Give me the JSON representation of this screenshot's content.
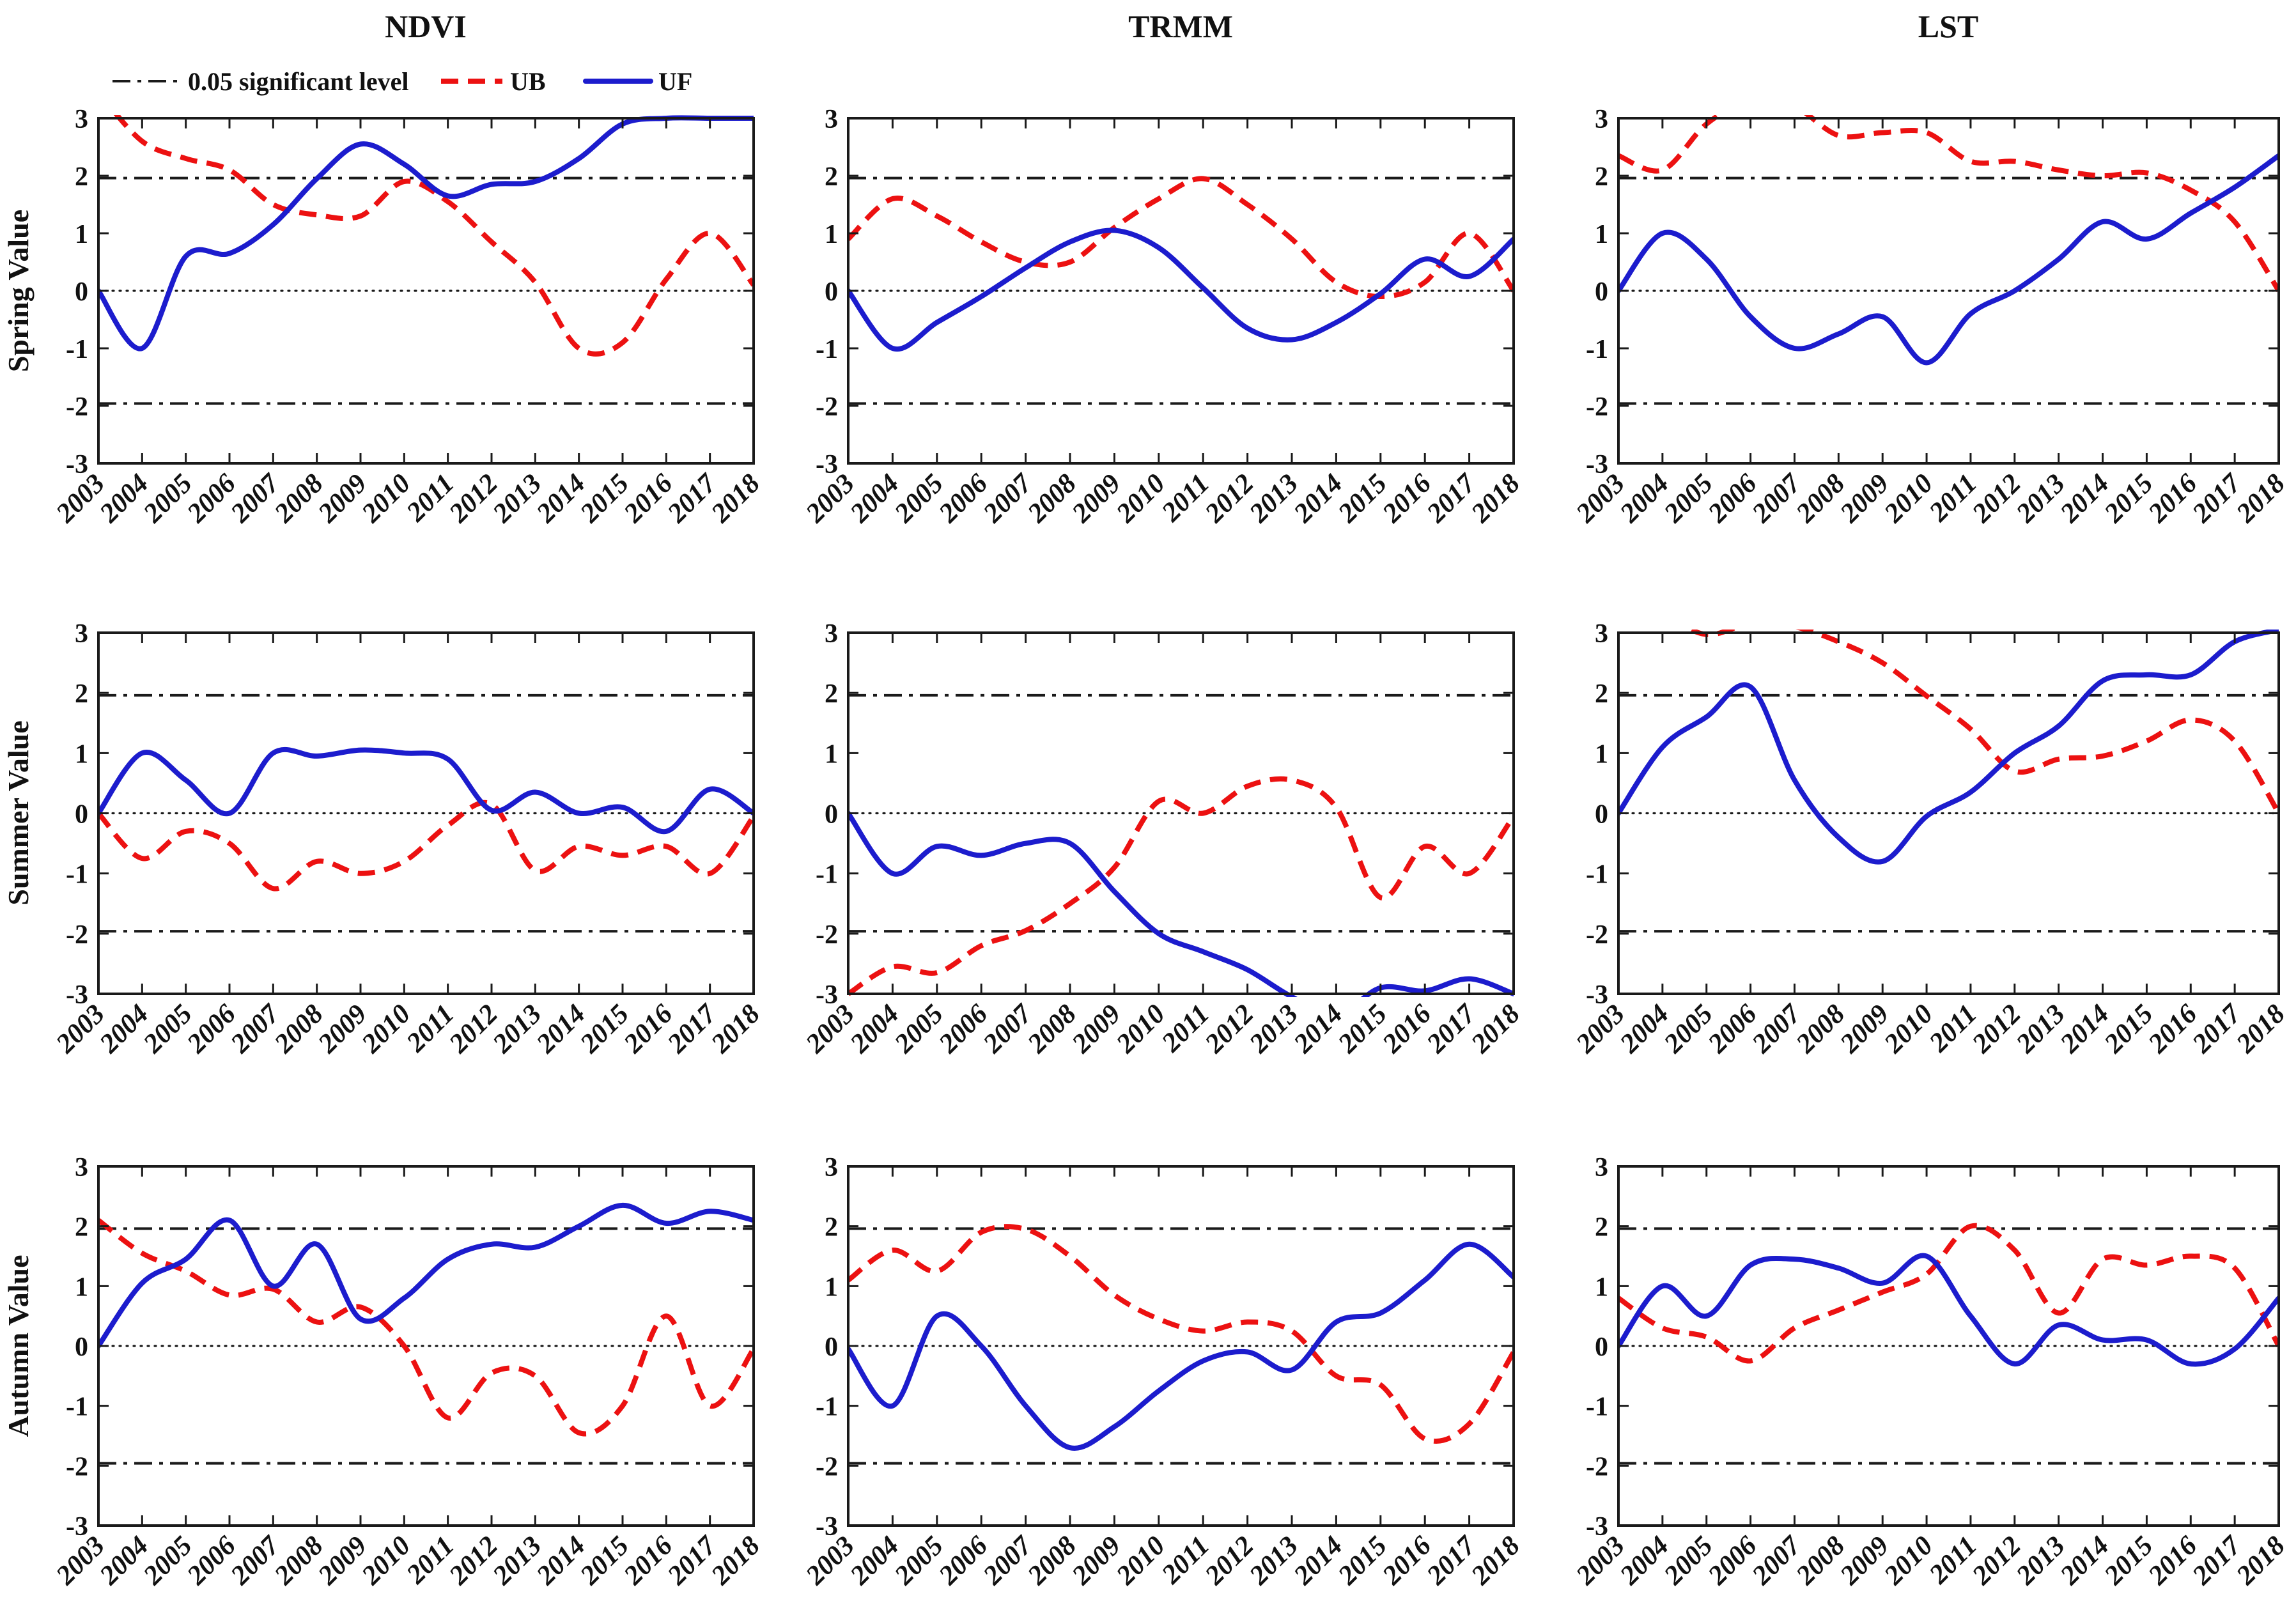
{
  "figure": {
    "column_titles": [
      "NDVI",
      "TRMM",
      "LST"
    ],
    "row_labels": [
      "Spring Value",
      "Summer Value",
      "Autumn Value"
    ],
    "legend": {
      "significance_label": "0.05 significant level",
      "ub_label": "UB",
      "uf_label": "UF"
    },
    "colors": {
      "uf_blue": "#1c1ccd",
      "ub_red": "#ec1111",
      "significance_line": "#1a1a1a",
      "zero_line": "#1a1a1a",
      "axis": "#000000"
    }
  },
  "chart_data": [
    {
      "id": "ndvi-spring",
      "type": "line",
      "column": "NDVI",
      "row": "Spring Value",
      "x_years": [
        2003,
        2004,
        2005,
        2006,
        2007,
        2008,
        2009,
        2010,
        2011,
        2012,
        2013,
        2014,
        2015,
        2016,
        2017,
        2018
      ],
      "ylim": [
        -3,
        3
      ],
      "yticks": [
        3,
        2,
        1,
        0,
        -1,
        -2,
        -3
      ],
      "significance_level": 1.96,
      "zero_line": 0,
      "grid": false,
      "legend_position": "top-left",
      "series": [
        {
          "name": "UB",
          "style": "dashed",
          "color": "#ec1111",
          "values": [
            3.45,
            2.6,
            2.3,
            2.1,
            1.5,
            1.32,
            1.3,
            1.9,
            1.55,
            0.85,
            0.15,
            -1.0,
            -0.9,
            0.2,
            1.0,
            0.1
          ]
        },
        {
          "name": "UF",
          "style": "solid",
          "color": "#1c1ccd",
          "values": [
            0,
            -1.0,
            0.6,
            0.65,
            1.15,
            1.95,
            2.55,
            2.2,
            1.65,
            1.85,
            1.9,
            2.3,
            2.9,
            3.0,
            3.0,
            3.0
          ]
        }
      ]
    },
    {
      "id": "trmm-spring",
      "type": "line",
      "column": "TRMM",
      "row": "Spring Value",
      "x_years": [
        2003,
        2004,
        2005,
        2006,
        2007,
        2008,
        2009,
        2010,
        2011,
        2012,
        2013,
        2014,
        2015,
        2016,
        2017,
        2018
      ],
      "ylim": [
        -3,
        3
      ],
      "yticks": [
        3,
        2,
        1,
        0,
        -1,
        -2,
        -3
      ],
      "significance_level": 1.96,
      "zero_line": 0,
      "grid": false,
      "series": [
        {
          "name": "UB",
          "style": "dashed",
          "color": "#ec1111",
          "values": [
            0.9,
            1.6,
            1.3,
            0.85,
            0.5,
            0.5,
            1.1,
            1.6,
            1.95,
            1.5,
            0.9,
            0.15,
            -0.1,
            0.15,
            1.0,
            0.0
          ]
        },
        {
          "name": "UF",
          "style": "solid",
          "color": "#1c1ccd",
          "values": [
            0,
            -1.0,
            -0.55,
            -0.1,
            0.4,
            0.85,
            1.05,
            0.75,
            0.05,
            -0.65,
            -0.85,
            -0.55,
            -0.05,
            0.55,
            0.25,
            0.9
          ]
        }
      ]
    },
    {
      "id": "lst-spring",
      "type": "line",
      "column": "LST",
      "row": "Spring Value",
      "x_years": [
        2003,
        2004,
        2005,
        2006,
        2007,
        2008,
        2009,
        2010,
        2011,
        2012,
        2013,
        2014,
        2015,
        2016,
        2017,
        2018
      ],
      "ylim": [
        -3,
        3
      ],
      "yticks": [
        3,
        2,
        1,
        0,
        -1,
        -2,
        -3
      ],
      "significance_level": 1.96,
      "zero_line": 0,
      "grid": false,
      "series": [
        {
          "name": "UB",
          "style": "dashed",
          "color": "#ec1111",
          "values": [
            2.35,
            2.1,
            2.9,
            3.3,
            3.2,
            2.7,
            2.75,
            2.75,
            2.25,
            2.25,
            2.1,
            2.0,
            2.05,
            1.75,
            1.2,
            0.0
          ]
        },
        {
          "name": "UF",
          "style": "solid",
          "color": "#1c1ccd",
          "values": [
            0,
            1.0,
            0.55,
            -0.45,
            -1.0,
            -0.75,
            -0.45,
            -1.25,
            -0.4,
            0.0,
            0.55,
            1.2,
            0.9,
            1.35,
            1.8,
            2.35
          ]
        }
      ]
    },
    {
      "id": "ndvi-summer",
      "type": "line",
      "column": "NDVI",
      "row": "Summer Value",
      "x_years": [
        2003,
        2004,
        2005,
        2006,
        2007,
        2008,
        2009,
        2010,
        2011,
        2012,
        2013,
        2014,
        2015,
        2016,
        2017,
        2018
      ],
      "ylim": [
        -3,
        3
      ],
      "yticks": [
        3,
        2,
        1,
        0,
        -1,
        -2,
        -3
      ],
      "significance_level": 1.96,
      "zero_line": 0,
      "grid": false,
      "series": [
        {
          "name": "UB",
          "style": "dashed",
          "color": "#ec1111",
          "values": [
            0,
            -0.75,
            -0.3,
            -0.5,
            -1.25,
            -0.8,
            -1.0,
            -0.8,
            -0.2,
            0.15,
            -0.95,
            -0.55,
            -0.7,
            -0.55,
            -1.0,
            -0.05
          ]
        },
        {
          "name": "UF",
          "style": "solid",
          "color": "#1c1ccd",
          "values": [
            0,
            1.0,
            0.55,
            0.0,
            1.0,
            0.95,
            1.05,
            1.0,
            0.9,
            0.05,
            0.35,
            0.0,
            0.1,
            -0.3,
            0.4,
            0.0
          ]
        }
      ]
    },
    {
      "id": "trmm-summer",
      "type": "line",
      "column": "TRMM",
      "row": "Summer Value",
      "x_years": [
        2003,
        2004,
        2005,
        2006,
        2007,
        2008,
        2009,
        2010,
        2011,
        2012,
        2013,
        2014,
        2015,
        2016,
        2017,
        2018
      ],
      "ylim": [
        -3,
        3
      ],
      "yticks": [
        3,
        2,
        1,
        0,
        -1,
        -2,
        -3
      ],
      "significance_level": 1.96,
      "zero_line": 0,
      "grid": false,
      "series": [
        {
          "name": "UB",
          "style": "dashed",
          "color": "#ec1111",
          "values": [
            -3.0,
            -2.55,
            -2.65,
            -2.2,
            -1.95,
            -1.5,
            -0.9,
            0.2,
            0.0,
            0.45,
            0.55,
            0.1,
            -1.4,
            -0.55,
            -1.0,
            -0.05
          ]
        },
        {
          "name": "UF",
          "style": "solid",
          "color": "#1c1ccd",
          "values": [
            0,
            -1.0,
            -0.55,
            -0.7,
            -0.5,
            -0.5,
            -1.3,
            -2.0,
            -2.3,
            -2.6,
            -3.05,
            -3.35,
            -2.9,
            -2.95,
            -2.75,
            -3.0
          ]
        }
      ]
    },
    {
      "id": "lst-summer",
      "type": "line",
      "column": "LST",
      "row": "Summer Value",
      "x_years": [
        2003,
        2004,
        2005,
        2006,
        2007,
        2008,
        2009,
        2010,
        2011,
        2012,
        2013,
        2014,
        2015,
        2016,
        2017,
        2018
      ],
      "ylim": [
        -3,
        3
      ],
      "yticks": [
        3,
        2,
        1,
        0,
        -1,
        -2,
        -3
      ],
      "significance_level": 1.96,
      "zero_line": 0,
      "grid": false,
      "series": [
        {
          "name": "UB",
          "style": "dashed",
          "color": "#ec1111",
          "values": [
            3.6,
            3.3,
            2.97,
            3.15,
            3.1,
            2.85,
            2.5,
            1.95,
            1.4,
            0.7,
            0.9,
            0.95,
            1.2,
            1.55,
            1.2,
            0.0
          ]
        },
        {
          "name": "UF",
          "style": "solid",
          "color": "#1c1ccd",
          "values": [
            0,
            1.1,
            1.6,
            2.1,
            0.55,
            -0.4,
            -0.8,
            -0.05,
            0.35,
            1.0,
            1.45,
            2.2,
            2.3,
            2.3,
            2.85,
            3.05
          ]
        }
      ]
    },
    {
      "id": "ndvi-autumn",
      "type": "line",
      "column": "NDVI",
      "row": "Autumn Value",
      "x_years": [
        2003,
        2004,
        2005,
        2006,
        2007,
        2008,
        2009,
        2010,
        2011,
        2012,
        2013,
        2014,
        2015,
        2016,
        2017,
        2018
      ],
      "ylim": [
        -3,
        3
      ],
      "yticks": [
        3,
        2,
        1,
        0,
        -1,
        -2,
        -3
      ],
      "significance_level": 1.96,
      "zero_line": 0,
      "grid": false,
      "series": [
        {
          "name": "UB",
          "style": "dashed",
          "color": "#ec1111",
          "values": [
            2.1,
            1.55,
            1.25,
            0.85,
            0.95,
            0.4,
            0.65,
            0.0,
            -1.2,
            -0.45,
            -0.5,
            -1.45,
            -1.0,
            0.5,
            -1.0,
            -0.05
          ]
        },
        {
          "name": "UF",
          "style": "solid",
          "color": "#1c1ccd",
          "values": [
            0,
            1.05,
            1.45,
            2.1,
            1.0,
            1.7,
            0.45,
            0.8,
            1.45,
            1.7,
            1.65,
            2.0,
            2.35,
            2.05,
            2.25,
            2.1
          ]
        }
      ]
    },
    {
      "id": "trmm-autumn",
      "type": "line",
      "column": "TRMM",
      "row": "Autumn Value",
      "x_years": [
        2003,
        2004,
        2005,
        2006,
        2007,
        2008,
        2009,
        2010,
        2011,
        2012,
        2013,
        2014,
        2015,
        2016,
        2017,
        2018
      ],
      "ylim": [
        -3,
        3
      ],
      "yticks": [
        3,
        2,
        1,
        0,
        -1,
        -2,
        -3
      ],
      "significance_level": 1.96,
      "zero_line": 0,
      "grid": false,
      "series": [
        {
          "name": "UB",
          "style": "dashed",
          "color": "#ec1111",
          "values": [
            1.1,
            1.6,
            1.25,
            1.9,
            1.95,
            1.5,
            0.85,
            0.45,
            0.25,
            0.4,
            0.25,
            -0.5,
            -0.65,
            -1.55,
            -1.3,
            -0.1
          ]
        },
        {
          "name": "UF",
          "style": "solid",
          "color": "#1c1ccd",
          "values": [
            -0.05,
            -1.0,
            0.5,
            0.0,
            -1.0,
            -1.7,
            -1.35,
            -0.75,
            -0.25,
            -0.1,
            -0.4,
            0.4,
            0.55,
            1.1,
            1.7,
            1.15
          ]
        }
      ]
    },
    {
      "id": "lst-autumn",
      "type": "line",
      "column": "LST",
      "row": "Autumn Value",
      "x_years": [
        2003,
        2004,
        2005,
        2006,
        2007,
        2008,
        2009,
        2010,
        2011,
        2012,
        2013,
        2014,
        2015,
        2016,
        2017,
        2018
      ],
      "ylim": [
        -3,
        3
      ],
      "yticks": [
        3,
        2,
        1,
        0,
        -1,
        -2,
        -3
      ],
      "significance_level": 1.96,
      "zero_line": 0,
      "grid": false,
      "series": [
        {
          "name": "UB",
          "style": "dashed",
          "color": "#ec1111",
          "values": [
            0.8,
            0.3,
            0.15,
            -0.25,
            0.3,
            0.6,
            0.9,
            1.2,
            2.0,
            1.6,
            0.55,
            1.45,
            1.35,
            1.5,
            1.3,
            0.0
          ]
        },
        {
          "name": "UF",
          "style": "solid",
          "color": "#1c1ccd",
          "values": [
            0,
            1.0,
            0.5,
            1.35,
            1.45,
            1.3,
            1.05,
            1.5,
            0.5,
            -0.3,
            0.35,
            0.1,
            0.1,
            -0.3,
            -0.05,
            0.8
          ]
        }
      ]
    }
  ]
}
